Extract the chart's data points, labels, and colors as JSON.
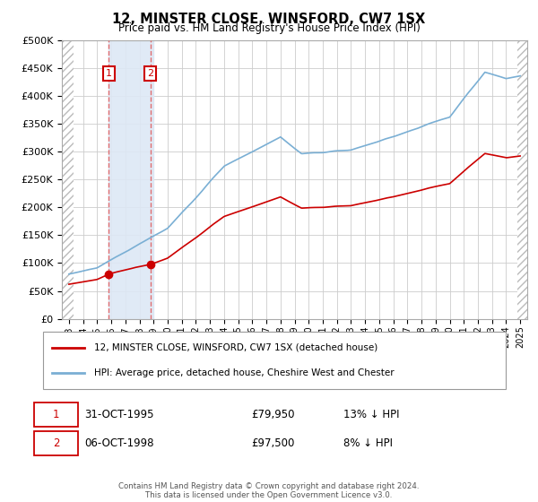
{
  "title": "12, MINSTER CLOSE, WINSFORD, CW7 1SX",
  "subtitle": "Price paid vs. HM Land Registry's House Price Index (HPI)",
  "legend_line1": "12, MINSTER CLOSE, WINSFORD, CW7 1SX (detached house)",
  "legend_line2": "HPI: Average price, detached house, Cheshire West and Chester",
  "footnote": "Contains HM Land Registry data © Crown copyright and database right 2024.\nThis data is licensed under the Open Government Licence v3.0.",
  "sale1_date": "31-OCT-1995",
  "sale1_price": 79950,
  "sale1_label": "13% ↓ HPI",
  "sale2_date": "06-OCT-1998",
  "sale2_price": 97500,
  "sale2_label": "8% ↓ HPI",
  "sale1_x": 1995.83,
  "sale2_x": 1998.77,
  "ylim_min": 0,
  "ylim_max": 500000,
  "xlim_min": 1992.5,
  "xlim_max": 2025.5,
  "hpi_color": "#7aafd4",
  "price_color": "#cc0000",
  "shade_color": "#dde8f5",
  "grid_color": "#cccccc",
  "dashed_line_color": "#e06060",
  "hatch_color": "#bbbbbb",
  "hatch_left_end": 1993.3,
  "hatch_right_start": 2024.83,
  "shade_start": 1995.83,
  "shade_end": 1999.0
}
